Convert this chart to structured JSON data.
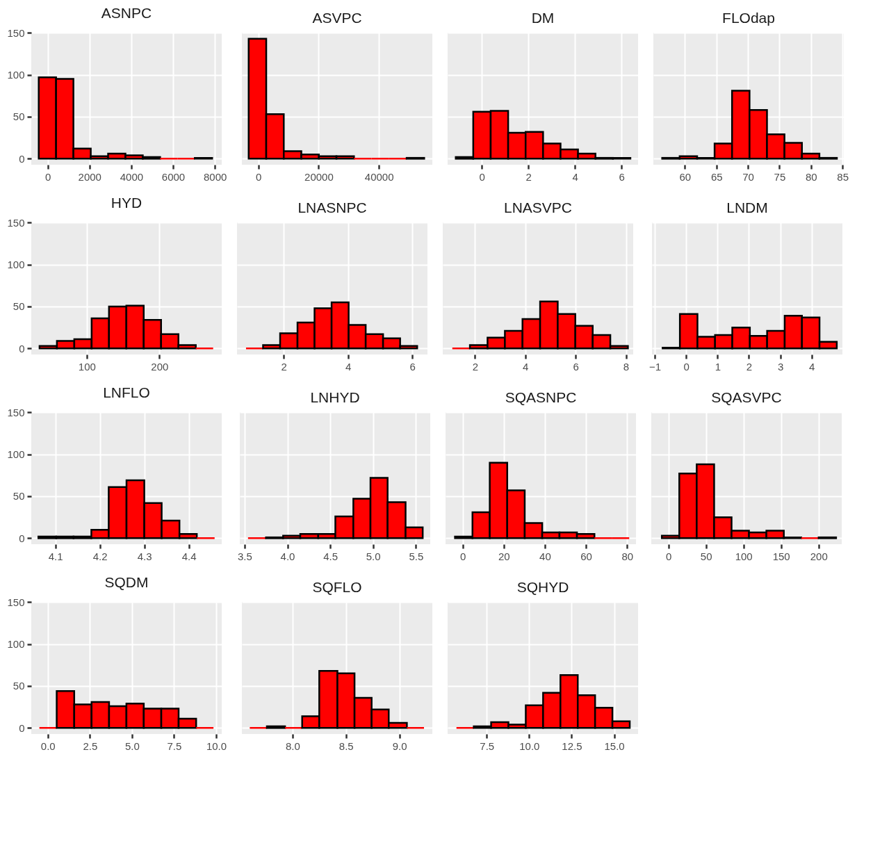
{
  "chart_data": [
    {
      "type": "histogram",
      "title": "ASNPC",
      "color": "#ff0000",
      "bins": [
        -430,
        400,
        1230,
        2060,
        2890,
        3720,
        4550,
        5380,
        6210,
        7040,
        7870
      ],
      "values": [
        97,
        95,
        12,
        3,
        6,
        4,
        2,
        0,
        0,
        1
      ],
      "xlim": [
        -787,
        8328
      ],
      "xticks": [
        0,
        2000,
        4000,
        6000,
        8000
      ],
      "ylim": [
        -7.15,
        150.15
      ],
      "yticks": [
        0,
        50,
        100,
        150
      ],
      "grid": true
    },
    {
      "type": "histogram",
      "title": "ASVPC",
      "color": "#ff0000",
      "bins": [
        -3200,
        2620,
        8440,
        14260,
        20080,
        25900,
        31720,
        37540,
        43360,
        49180,
        55000
      ],
      "values": [
        143,
        53,
        9,
        5,
        3,
        3,
        0,
        0,
        0,
        1
      ],
      "xlim": [
        -5450,
        57700
      ],
      "xticks": [
        0,
        20000,
        40000
      ],
      "ylim": [
        -7.15,
        150.15
      ],
      "yticks": [
        0,
        50,
        100,
        150
      ],
      "grid": true,
      "tick_labels": "x"
    },
    {
      "type": "histogram",
      "title": "DM",
      "color": "#ff0000",
      "bins": [
        -1.12,
        -0.37,
        0.38,
        1.13,
        1.88,
        2.63,
        3.38,
        4.13,
        4.88,
        5.63,
        6.38
      ],
      "values": [
        2,
        56,
        57,
        31,
        32,
        18,
        11,
        6,
        1,
        1
      ],
      "xlim": [
        -1.47,
        6.71
      ],
      "xticks": [
        0,
        2,
        4,
        6
      ],
      "ylim": [
        -7.15,
        150.15
      ],
      "yticks": [
        0,
        50,
        100,
        150
      ],
      "grid": true,
      "tick_labels": "x"
    },
    {
      "type": "histogram",
      "title": "FLOdap",
      "color": "#ff0000",
      "bins": [
        56.4,
        59.17,
        61.94,
        64.71,
        67.48,
        70.25,
        73.02,
        75.79,
        78.56,
        81.33,
        84.1
      ],
      "values": [
        1,
        3,
        1,
        18,
        81,
        58,
        29,
        19,
        6,
        1
      ],
      "xlim": [
        55,
        85.2
      ],
      "xticks": [
        60,
        65,
        70,
        75,
        80,
        85
      ],
      "ylim": [
        -7.15,
        150.15
      ],
      "yticks": [
        0,
        50,
        100,
        150
      ],
      "grid": true,
      "tick_labels": "x"
    },
    {
      "type": "histogram",
      "title": "HYD",
      "color": "#ff0000",
      "bins": [
        35,
        58.9,
        82.8,
        106.7,
        130.6,
        154.5,
        178.4,
        202.3,
        226.2,
        250.1,
        274
      ],
      "values": [
        3,
        9,
        11,
        36,
        50,
        51,
        34,
        17,
        4,
        0
      ],
      "xlim": [
        23.6,
        285.8
      ],
      "xticks": [
        100,
        200
      ],
      "ylim": [
        -7.15,
        150.15
      ],
      "yticks": [
        0,
        50,
        100,
        150
      ],
      "grid": true
    },
    {
      "type": "histogram",
      "title": "LNASNPC",
      "color": "#ff0000",
      "bins": [
        0.83,
        1.36,
        1.89,
        2.43,
        2.96,
        3.49,
        4.02,
        4.55,
        5.09,
        5.62,
        6.15
      ],
      "values": [
        0,
        4,
        18,
        31,
        48,
        55,
        28,
        17,
        12,
        3
      ],
      "xlim": [
        0.55,
        6.47
      ],
      "xticks": [
        2,
        4,
        6
      ],
      "ylim": [
        -7.15,
        150.15
      ],
      "yticks": [
        0,
        50,
        100,
        150
      ],
      "grid": true,
      "tick_labels": "x"
    },
    {
      "type": "histogram",
      "title": "LNASVPC",
      "color": "#ff0000",
      "bins": [
        1.1,
        1.8,
        2.5,
        3.19,
        3.89,
        4.59,
        5.29,
        5.99,
        6.68,
        7.38,
        8.08
      ],
      "values": [
        0,
        4,
        13,
        21,
        35,
        56,
        41,
        27,
        16,
        3
      ],
      "xlim": [
        0.72,
        8.29
      ],
      "xticks": [
        2,
        4,
        6,
        8
      ],
      "ylim": [
        -7.15,
        150.15
      ],
      "yticks": [
        0,
        50,
        100,
        150
      ],
      "grid": true,
      "tick_labels": "x"
    },
    {
      "type": "histogram",
      "title": "LNDM",
      "color": "#ff0000",
      "bins": [
        -0.75,
        -0.2,
        0.36,
        0.92,
        1.47,
        2.03,
        2.58,
        3.14,
        3.69,
        4.25,
        4.8
      ],
      "values": [
        1,
        41,
        14,
        16,
        25,
        15,
        21,
        39,
        37,
        8
      ],
      "xlim": [
        -1.09,
        4.98
      ],
      "xticks": [
        {
          "value": -1,
          "label": "−1"
        },
        0,
        1,
        2,
        3,
        4
      ],
      "ylim": [
        -7.15,
        150.15
      ],
      "yticks": [
        0,
        50,
        100,
        150
      ],
      "grid": true,
      "tick_labels": "x"
    },
    {
      "type": "histogram",
      "title": "LNFLO",
      "color": "#ff0000",
      "bins": [
        4.062,
        4.102,
        4.141,
        4.181,
        4.22,
        4.26,
        4.3,
        4.339,
        4.379,
        4.418,
        4.458
      ],
      "values": [
        2,
        2,
        2,
        10,
        61,
        69,
        42,
        21,
        5,
        0
      ],
      "xlim": [
        4.046,
        4.474
      ],
      "xticks": [
        4.1,
        4.2,
        4.3,
        4.4
      ],
      "ylim": [
        -7.15,
        150.15
      ],
      "yticks": [
        0,
        50,
        100,
        150
      ],
      "grid": true
    },
    {
      "type": "histogram",
      "title": "LNHYD",
      "color": "#ff0000",
      "bins": [
        3.54,
        3.75,
        3.95,
        4.15,
        4.36,
        4.56,
        4.77,
        4.97,
        5.17,
        5.38,
        5.58
      ],
      "values": [
        0,
        1,
        3,
        5,
        5,
        26,
        47,
        72,
        43,
        13
      ],
      "xlim": [
        3.444,
        5.668
      ],
      "xticks": [
        3.5,
        {
          "value": 4,
          "label": "4.0"
        },
        4.5,
        {
          "value": 5,
          "label": "5.0"
        },
        5.5
      ],
      "ylim": [
        -7.15,
        150.15
      ],
      "yticks": [
        0,
        50,
        100,
        150
      ],
      "grid": true,
      "tick_labels": "x"
    },
    {
      "type": "histogram",
      "title": "SQASNPC",
      "color": "#ff0000",
      "bins": [
        -3.7,
        4.8,
        13.2,
        21.7,
        30.2,
        38.7,
        47.1,
        55.6,
        64.1,
        72.5,
        81
      ],
      "values": [
        2,
        31,
        90,
        57,
        18,
        7,
        7,
        5,
        0,
        0
      ],
      "xlim": [
        -8.3,
        84.3
      ],
      "xticks": [
        0,
        20,
        40,
        60,
        80
      ],
      "ylim": [
        -7.15,
        150.15
      ],
      "yticks": [
        0,
        50,
        100,
        150
      ],
      "grid": true,
      "tick_labels": "x"
    },
    {
      "type": "histogram",
      "title": "SQASVPC",
      "color": "#ff0000",
      "bins": [
        -8.7,
        14.5,
        37.7,
        60.9,
        84.1,
        107.3,
        130.5,
        153.7,
        176.9,
        200.1,
        223.3
      ],
      "values": [
        3,
        77,
        88,
        25,
        9,
        7,
        9,
        1,
        0,
        1
      ],
      "xlim": [
        -22.8,
        230.8
      ],
      "xticks": [
        0,
        50,
        100,
        150,
        200
      ],
      "ylim": [
        -7.15,
        150.15
      ],
      "yticks": [
        0,
        50,
        100,
        150
      ],
      "grid": true,
      "tick_labels": "x"
    },
    {
      "type": "histogram",
      "title": "SQDM",
      "color": "#ff0000",
      "bins": [
        -0.5,
        0.53,
        1.57,
        2.6,
        3.64,
        4.67,
        5.7,
        6.74,
        7.77,
        8.81,
        9.84
      ],
      "values": [
        0,
        44,
        28,
        31,
        26,
        29,
        23,
        23,
        11,
        0
      ],
      "xlim": [
        -0.98,
        10.33
      ],
      "xticks": [
        {
          "value": 0,
          "label": "0.0"
        },
        2.5,
        {
          "value": 5,
          "label": "5.0"
        },
        7.5,
        {
          "value": 10,
          "label": "10.0"
        }
      ],
      "ylim": [
        -7.15,
        150.15
      ],
      "yticks": [
        0,
        50,
        100,
        150
      ],
      "grid": true
    },
    {
      "type": "histogram",
      "title": "SQFLO",
      "color": "#ff0000",
      "bins": [
        7.6,
        7.76,
        7.93,
        8.09,
        8.25,
        8.42,
        8.58,
        8.74,
        8.9,
        9.07,
        9.23
      ],
      "values": [
        0,
        2,
        0,
        14,
        68,
        65,
        36,
        22,
        6,
        0
      ],
      "xlim": [
        7.526,
        9.308
      ],
      "xticks": [
        {
          "value": 8,
          "label": "8.0"
        },
        8.5,
        {
          "value": 9,
          "label": "9.0"
        }
      ],
      "ylim": [
        -7.15,
        150.15
      ],
      "yticks": [
        0,
        50,
        100,
        150
      ],
      "grid": true,
      "tick_labels": "x"
    },
    {
      "type": "histogram",
      "title": "SQHYD",
      "color": "#ff0000",
      "bins": [
        5.72,
        6.74,
        7.76,
        8.78,
        9.8,
        10.82,
        11.84,
        12.86,
        13.88,
        14.9,
        15.92
      ],
      "values": [
        0,
        2,
        7,
        4,
        27,
        42,
        63,
        39,
        24,
        8
      ],
      "xlim": [
        5.2,
        16.41
      ],
      "xticks": [
        7.5,
        {
          "value": 10,
          "label": "10.0"
        },
        12.5,
        {
          "value": 15,
          "label": "15.0"
        }
      ],
      "ylim": [
        -7.15,
        150.15
      ],
      "yticks": [
        0,
        50,
        100,
        150
      ],
      "grid": true,
      "tick_labels": "x"
    }
  ]
}
